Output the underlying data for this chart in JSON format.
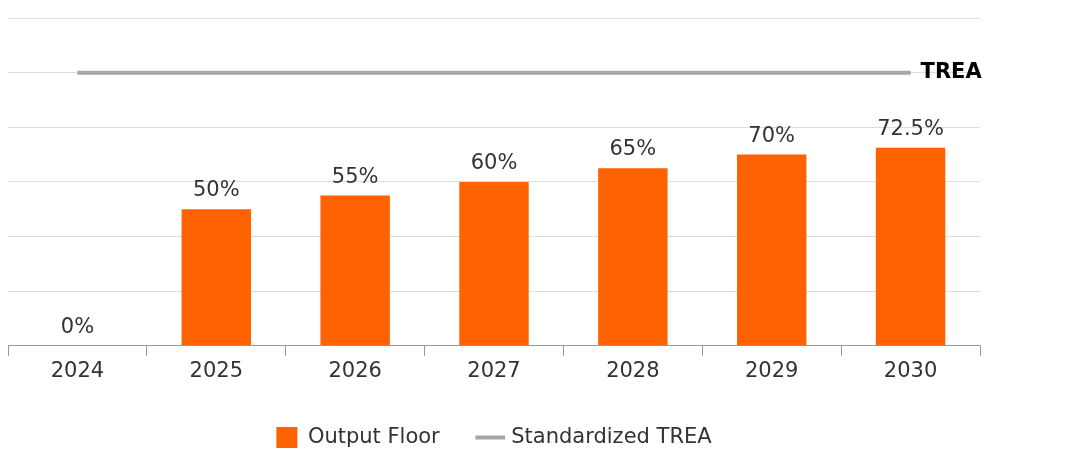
{
  "chart_data": {
    "type": "bar",
    "categories": [
      "2024",
      "2025",
      "2026",
      "2027",
      "2028",
      "2029",
      "2030"
    ],
    "series": [
      {
        "name": "Output Floor",
        "color": "#ff6200",
        "values": [
          0,
          50,
          55,
          60,
          65,
          70,
          72.5
        ],
        "value_labels": [
          "0%",
          "50%",
          "55%",
          "60%",
          "65%",
          "70%",
          "72.5%"
        ]
      },
      {
        "name": "Standardized TREA",
        "type": "line",
        "color": "#a6a6a6",
        "values": [
          100,
          100,
          100,
          100,
          100,
          100,
          100
        ]
      }
    ],
    "ylim": [
      0,
      120
    ],
    "yticks": [
      {
        "value": 0,
        "label": null
      },
      {
        "value": 20,
        "label": null
      },
      {
        "value": 40,
        "label": null
      },
      {
        "value": 60,
        "label": null
      },
      {
        "value": 80,
        "label": null
      },
      {
        "value": 100,
        "label": null
      },
      {
        "value": 120,
        "label": null
      }
    ],
    "tick_labels": "x",
    "grid": "y",
    "legend": "bottom",
    "marker": "none",
    "line_style": "solid",
    "annotations": [
      {
        "text": "TREA",
        "x": "2030",
        "y": 100
      }
    ]
  }
}
